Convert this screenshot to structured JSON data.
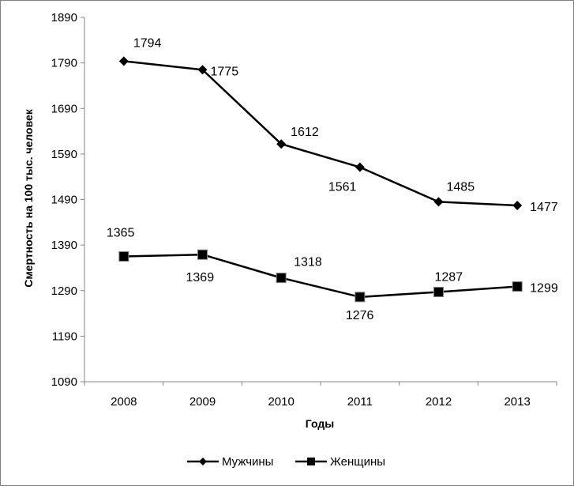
{
  "chart_data": {
    "type": "line",
    "categories": [
      "2008",
      "2009",
      "2010",
      "2011",
      "2012",
      "2013"
    ],
    "series": [
      {
        "name": "Мужчины",
        "marker": "diamond",
        "values": [
          1794,
          1775,
          1612,
          1561,
          1485,
          1477
        ]
      },
      {
        "name": "Женщины",
        "marker": "square",
        "values": [
          1365,
          1369,
          1318,
          1276,
          1287,
          1299
        ]
      }
    ],
    "ylim": [
      1090,
      1890
    ],
    "yticks": [
      "1890",
      "1790",
      "1690",
      "1590",
      "1490",
      "1390",
      "1290",
      "1190",
      "1090"
    ],
    "xlabel": "Годы",
    "ylabel": "Смертность на 100 тыс. человек",
    "legend": "bottom",
    "grid": false,
    "line_color": "#000000"
  }
}
